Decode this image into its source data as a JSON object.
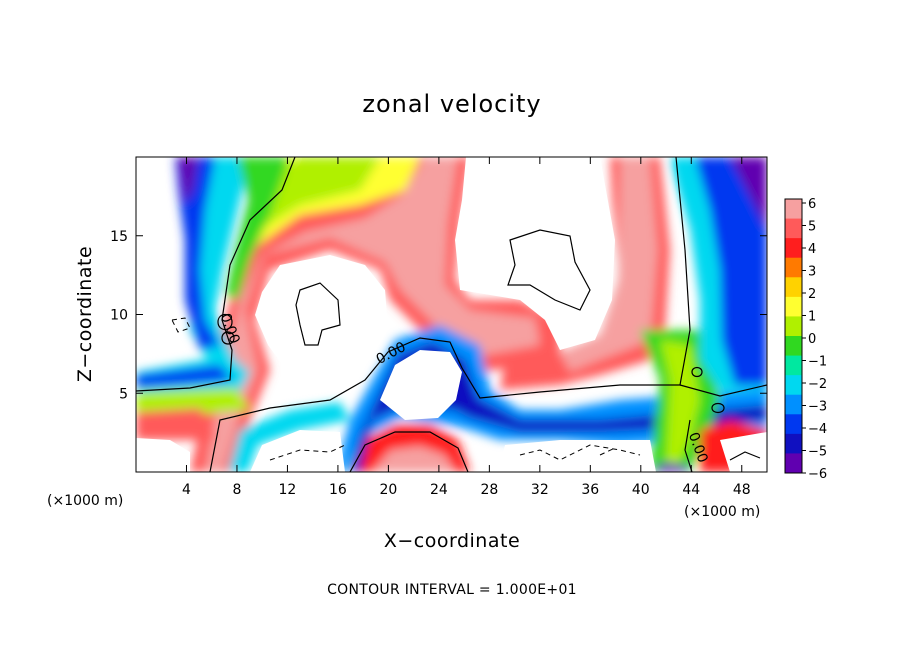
{
  "chart_data": {
    "type": "heatmap",
    "title": "zonal velocity",
    "xlabel": "X−coordinate",
    "ylabel": "Z−coordinate",
    "x_unit_label": "(×1000 m)",
    "x_unit_label_right": "(×1000 m)",
    "footer": "CONTOUR INTERVAL = 1.000E+01",
    "xlim": [
      0,
      50
    ],
    "ylim": [
      0,
      20
    ],
    "x_ticks": [
      4,
      8,
      12,
      16,
      20,
      24,
      28,
      32,
      36,
      40,
      44,
      48
    ],
    "y_ticks": [
      5,
      10,
      15
    ],
    "colorbar": {
      "levels": [
        6,
        5,
        4,
        3,
        2,
        1,
        0,
        -1,
        -2,
        -3,
        -4,
        -5,
        -6
      ],
      "tick_labels": [
        "6",
        "5",
        "4",
        "3",
        "2",
        "1",
        "0",
        "−1",
        "−2",
        "−3",
        "−4",
        "−5",
        "−6"
      ],
      "colors": [
        "#f6a0a0",
        "#ff5a5a",
        "#ff1e1e",
        "#ff7a00",
        "#ffd200",
        "#ffff30",
        "#b0f000",
        "#30d820",
        "#00e8a0",
        "#00d8f0",
        "#0090ff",
        "#0038f0",
        "#1010c0",
        "#6000b0"
      ]
    },
    "contour_labels": [
      "0.00",
      "0.00",
      "0.00"
    ],
    "contour_interval": 10
  }
}
